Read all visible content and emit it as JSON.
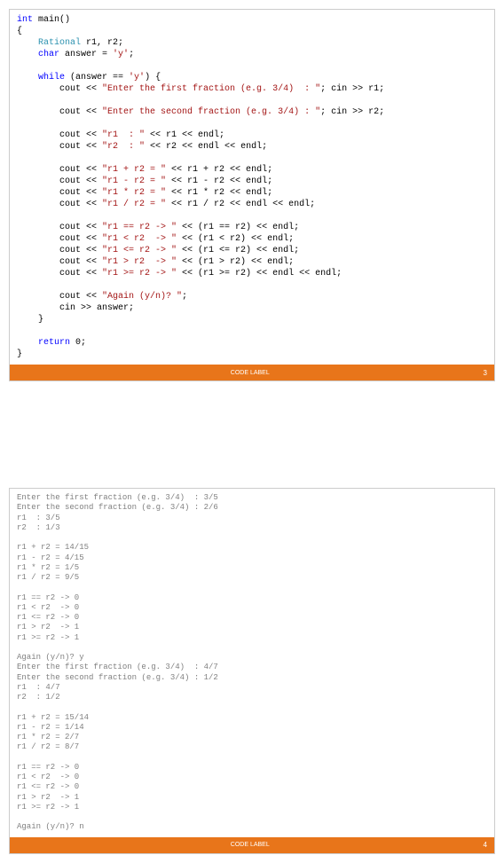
{
  "code_block": {
    "lines": [
      {
        "indent": 0,
        "segments": [
          {
            "t": "int",
            "c": "kw-blue"
          },
          {
            "t": " main()",
            "c": "ident"
          }
        ]
      },
      {
        "indent": 0,
        "segments": [
          {
            "t": "{",
            "c": "ident"
          }
        ]
      },
      {
        "indent": 4,
        "segments": [
          {
            "t": "Rational",
            "c": "kw-type"
          },
          {
            "t": " r1, r2;",
            "c": "ident"
          }
        ]
      },
      {
        "indent": 4,
        "segments": [
          {
            "t": "char",
            "c": "kw-blue"
          },
          {
            "t": " answer = ",
            "c": "ident"
          },
          {
            "t": "'y'",
            "c": "str-red"
          },
          {
            "t": ";",
            "c": "ident"
          }
        ]
      },
      {
        "indent": 0,
        "segments": [
          {
            "t": " ",
            "c": "ident"
          }
        ]
      },
      {
        "indent": 4,
        "segments": [
          {
            "t": "while",
            "c": "kw-blue"
          },
          {
            "t": " (answer == ",
            "c": "ident"
          },
          {
            "t": "'y'",
            "c": "str-red"
          },
          {
            "t": ") {",
            "c": "ident"
          }
        ]
      },
      {
        "indent": 8,
        "segments": [
          {
            "t": "cout << ",
            "c": "ident"
          },
          {
            "t": "\"Enter the first fraction (e.g. 3/4)  : \"",
            "c": "str-red"
          },
          {
            "t": "; cin >> r1;",
            "c": "ident"
          }
        ]
      },
      {
        "indent": 0,
        "segments": [
          {
            "t": " ",
            "c": "ident"
          }
        ]
      },
      {
        "indent": 8,
        "segments": [
          {
            "t": "cout << ",
            "c": "ident"
          },
          {
            "t": "\"Enter the second fraction (e.g. 3/4) : \"",
            "c": "str-red"
          },
          {
            "t": "; cin >> r2;",
            "c": "ident"
          }
        ]
      },
      {
        "indent": 0,
        "segments": [
          {
            "t": " ",
            "c": "ident"
          }
        ]
      },
      {
        "indent": 8,
        "segments": [
          {
            "t": "cout << ",
            "c": "ident"
          },
          {
            "t": "\"r1  : \"",
            "c": "str-red"
          },
          {
            "t": " << r1 << endl;",
            "c": "ident"
          }
        ]
      },
      {
        "indent": 8,
        "segments": [
          {
            "t": "cout << ",
            "c": "ident"
          },
          {
            "t": "\"r2  : \"",
            "c": "str-red"
          },
          {
            "t": " << r2 << endl << endl;",
            "c": "ident"
          }
        ]
      },
      {
        "indent": 0,
        "segments": [
          {
            "t": " ",
            "c": "ident"
          }
        ]
      },
      {
        "indent": 8,
        "segments": [
          {
            "t": "cout << ",
            "c": "ident"
          },
          {
            "t": "\"r1 + r2 = \"",
            "c": "str-red"
          },
          {
            "t": " << r1 + r2 << endl;",
            "c": "ident"
          }
        ]
      },
      {
        "indent": 8,
        "segments": [
          {
            "t": "cout << ",
            "c": "ident"
          },
          {
            "t": "\"r1 - r2 = \"",
            "c": "str-red"
          },
          {
            "t": " << r1 - r2 << endl;",
            "c": "ident"
          }
        ]
      },
      {
        "indent": 8,
        "segments": [
          {
            "t": "cout << ",
            "c": "ident"
          },
          {
            "t": "\"r1 * r2 = \"",
            "c": "str-red"
          },
          {
            "t": " << r1 * r2 << endl;",
            "c": "ident"
          }
        ]
      },
      {
        "indent": 8,
        "segments": [
          {
            "t": "cout << ",
            "c": "ident"
          },
          {
            "t": "\"r1 / r2 = \"",
            "c": "str-red"
          },
          {
            "t": " << r1 / r2 << endl << endl;",
            "c": "ident"
          }
        ]
      },
      {
        "indent": 0,
        "segments": [
          {
            "t": " ",
            "c": "ident"
          }
        ]
      },
      {
        "indent": 8,
        "segments": [
          {
            "t": "cout << ",
            "c": "ident"
          },
          {
            "t": "\"r1 == r2 -> \"",
            "c": "str-red"
          },
          {
            "t": " << (r1 == r2) << endl;",
            "c": "ident"
          }
        ]
      },
      {
        "indent": 8,
        "segments": [
          {
            "t": "cout << ",
            "c": "ident"
          },
          {
            "t": "\"r1 < r2  -> \"",
            "c": "str-red"
          },
          {
            "t": " << (r1 < r2) << endl;",
            "c": "ident"
          }
        ]
      },
      {
        "indent": 8,
        "segments": [
          {
            "t": "cout << ",
            "c": "ident"
          },
          {
            "t": "\"r1 <= r2 -> \"",
            "c": "str-red"
          },
          {
            "t": " << (r1 <= r2) << endl;",
            "c": "ident"
          }
        ]
      },
      {
        "indent": 8,
        "segments": [
          {
            "t": "cout << ",
            "c": "ident"
          },
          {
            "t": "\"r1 > r2  -> \"",
            "c": "str-red"
          },
          {
            "t": " << (r1 > r2) << endl;",
            "c": "ident"
          }
        ]
      },
      {
        "indent": 8,
        "segments": [
          {
            "t": "cout << ",
            "c": "ident"
          },
          {
            "t": "\"r1 >= r2 -> \"",
            "c": "str-red"
          },
          {
            "t": " << (r1 >= r2) << endl << endl;",
            "c": "ident"
          }
        ]
      },
      {
        "indent": 0,
        "segments": [
          {
            "t": " ",
            "c": "ident"
          }
        ]
      },
      {
        "indent": 8,
        "segments": [
          {
            "t": "cout << ",
            "c": "ident"
          },
          {
            "t": "\"Again (y/n)? \"",
            "c": "str-red"
          },
          {
            "t": ";",
            "c": "ident"
          }
        ]
      },
      {
        "indent": 8,
        "segments": [
          {
            "t": "cin >> answer;",
            "c": "ident"
          }
        ]
      },
      {
        "indent": 4,
        "segments": [
          {
            "t": "}",
            "c": "ident"
          }
        ]
      },
      {
        "indent": 0,
        "segments": [
          {
            "t": " ",
            "c": "ident"
          }
        ]
      },
      {
        "indent": 4,
        "segments": [
          {
            "t": "return",
            "c": "kw-blue"
          },
          {
            "t": " 0;",
            "c": "ident"
          }
        ]
      },
      {
        "indent": 0,
        "segments": [
          {
            "t": "}",
            "c": "ident"
          }
        ]
      }
    ],
    "footer_label": "CODE LABEL",
    "page_num": "3"
  },
  "output_block": {
    "lines": [
      "Enter the first fraction (e.g. 3/4)  : 3/5",
      "Enter the second fraction (e.g. 3/4) : 2/6",
      "r1  : 3/5",
      "r2  : 1/3",
      "",
      "r1 + r2 = 14/15",
      "r1 - r2 = 4/15",
      "r1 * r2 = 1/5",
      "r1 / r2 = 9/5",
      "",
      "r1 == r2 -> 0",
      "r1 < r2  -> 0",
      "r1 <= r2 -> 0",
      "r1 > r2  -> 1",
      "r1 >= r2 -> 1",
      "",
      "Again (y/n)? y",
      "Enter the first fraction (e.g. 3/4)  : 4/7",
      "Enter the second fraction (e.g. 3/4) : 1/2",
      "r1  : 4/7",
      "r2  : 1/2",
      "",
      "r1 + r2 = 15/14",
      "r1 - r2 = 1/14",
      "r1 * r2 = 2/7",
      "r1 / r2 = 8/7",
      "",
      "r1 == r2 -> 0",
      "r1 < r2  -> 0",
      "r1 <= r2 -> 0",
      "r1 > r2  -> 1",
      "r1 >= r2 -> 1",
      "",
      "Again (y/n)? n"
    ],
    "footer_label": "CODE LABEL",
    "page_num": "4"
  },
  "colors": {
    "keyword_blue": "#0000ff",
    "type_teal": "#2b91af",
    "string_red": "#a31515",
    "default_black": "#000000",
    "footer_orange": "#e8751a",
    "footer_text": "#ffffff",
    "border_gray": "#cccccc",
    "console_gray": "#808080",
    "background": "#ffffff"
  }
}
